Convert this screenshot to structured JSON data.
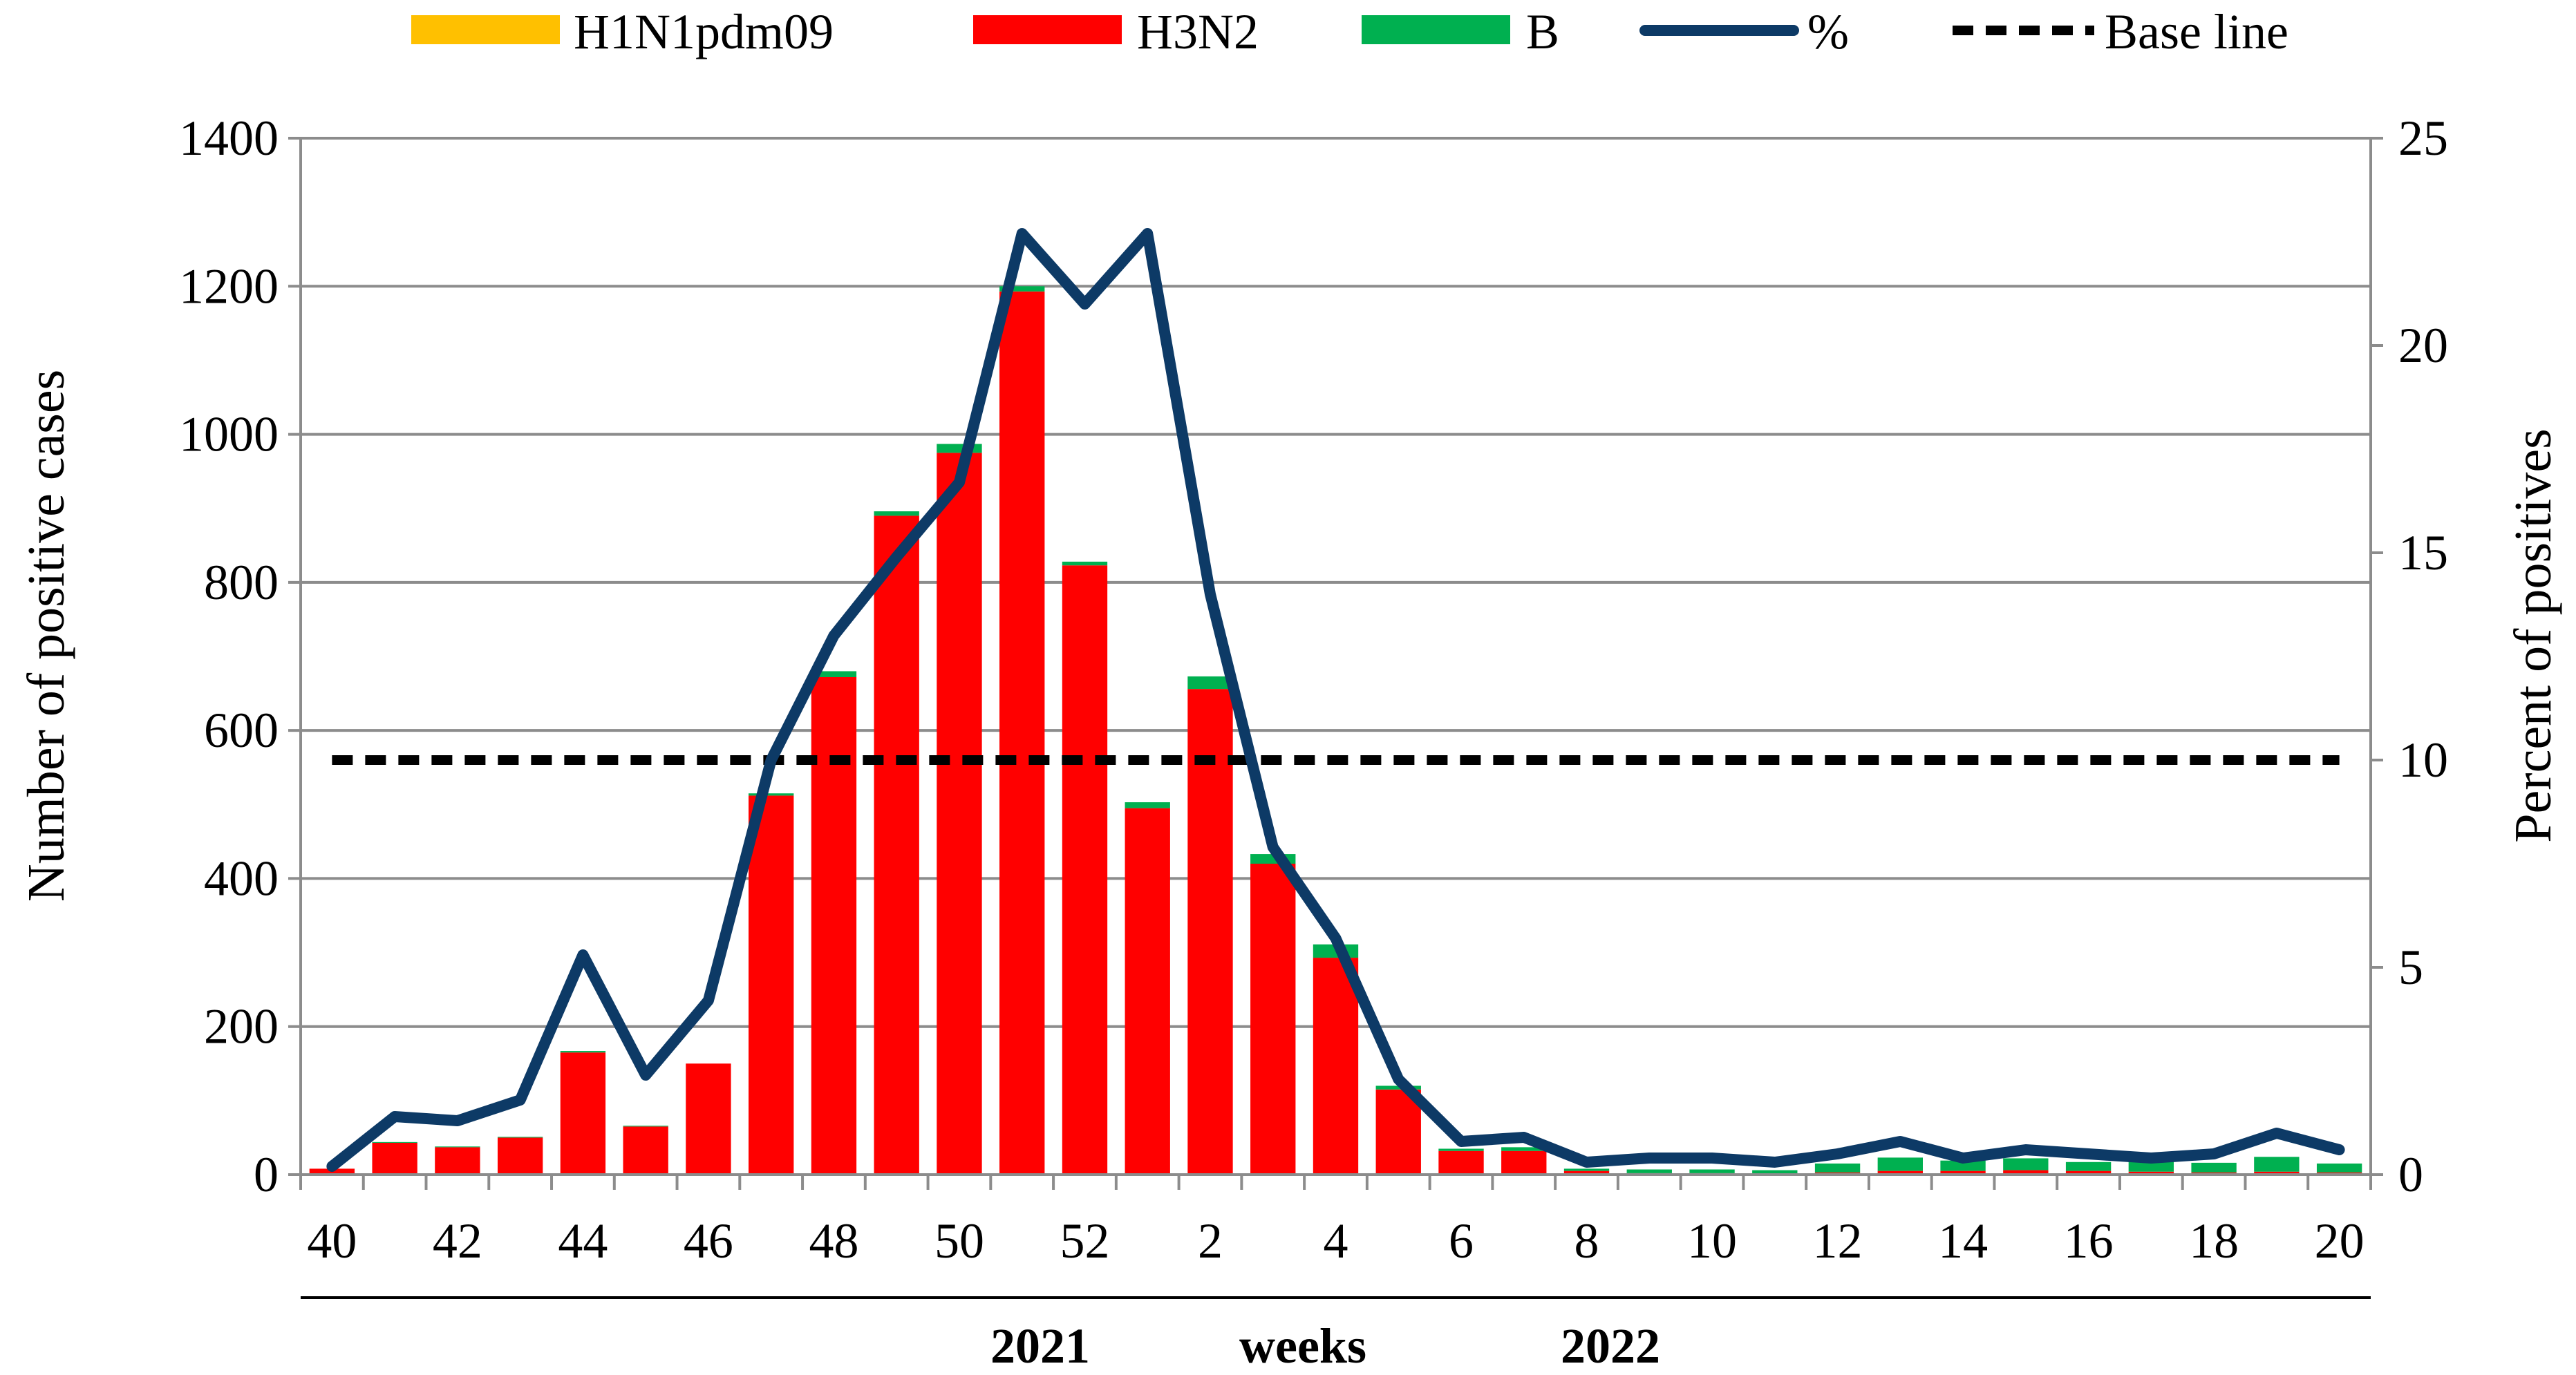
{
  "chart_data": {
    "type": "bar",
    "stacked": true,
    "x_tick_labels": [
      "40",
      "42",
      "44",
      "46",
      "48",
      "50",
      "52",
      "2",
      "4",
      "6",
      "8",
      "10",
      "12",
      "14",
      "16",
      "18",
      "20"
    ],
    "weeks": [
      "40",
      "41",
      "42",
      "43",
      "44",
      "45",
      "46",
      "47",
      "48",
      "49",
      "50",
      "51",
      "52",
      "1",
      "2",
      "3",
      "4",
      "5",
      "6",
      "7",
      "8",
      "9",
      "10",
      "11",
      "12",
      "13",
      "14",
      "15",
      "16",
      "17",
      "18",
      "19",
      "20"
    ],
    "series": [
      {
        "name": "H1N1pdm09",
        "color": "#FFC000",
        "values": [
          0,
          0,
          0,
          0,
          0,
          0,
          0,
          0,
          0,
          0,
          0,
          0,
          0,
          0,
          0,
          0,
          0,
          0,
          0,
          0,
          0,
          0,
          0,
          0,
          0,
          0,
          0,
          0,
          0,
          0,
          0,
          0,
          0
        ]
      },
      {
        "name": "H3N2",
        "color": "#FF0000",
        "values": [
          8,
          43,
          37,
          50,
          165,
          65,
          150,
          512,
          672,
          890,
          975,
          1193,
          823,
          495,
          656,
          420,
          293,
          115,
          32,
          32,
          5,
          2,
          2,
          1,
          3,
          5,
          5,
          6,
          5,
          4,
          3,
          4,
          3
        ]
      },
      {
        "name": "B",
        "color": "#00B050",
        "values": [
          0,
          1,
          1,
          1,
          2,
          1,
          0,
          3,
          8,
          6,
          12,
          7,
          5,
          8,
          17,
          13,
          18,
          5,
          3,
          5,
          3,
          5,
          5,
          5,
          12,
          18,
          14,
          16,
          12,
          15,
          13,
          20,
          12
        ]
      }
    ],
    "line_series": [
      {
        "name": "%",
        "color": "#0D3A66",
        "values": [
          0.2,
          1.4,
          1.3,
          1.8,
          5.3,
          2.4,
          4.2,
          10.0,
          13.0,
          14.9,
          16.7,
          22.7,
          21.0,
          22.7,
          14.0,
          7.9,
          5.7,
          2.3,
          0.8,
          0.9,
          0.3,
          0.4,
          0.4,
          0.3,
          0.5,
          0.8,
          0.4,
          0.6,
          0.5,
          0.4,
          0.5,
          1.0,
          0.6
        ]
      },
      {
        "name": "Base line",
        "color": "#000000",
        "dashed": true,
        "value": 10
      }
    ],
    "yleft_label": "Number of positive cases",
    "yleft_ticks": [
      "0",
      "200",
      "400",
      "600",
      "800",
      "1000",
      "1200",
      "1400"
    ],
    "ylim_left": [
      0,
      1400
    ],
    "yright_label": "Percent of positives",
    "yright_ticks": [
      "0",
      "5",
      "10",
      "15",
      "20",
      "25"
    ],
    "ylim_right": [
      0,
      25
    ],
    "footer_labels": {
      "year_start": "2021",
      "weeks": "weeks",
      "year_end": "2022"
    },
    "legend_position": "top",
    "grid": "horizontal"
  }
}
